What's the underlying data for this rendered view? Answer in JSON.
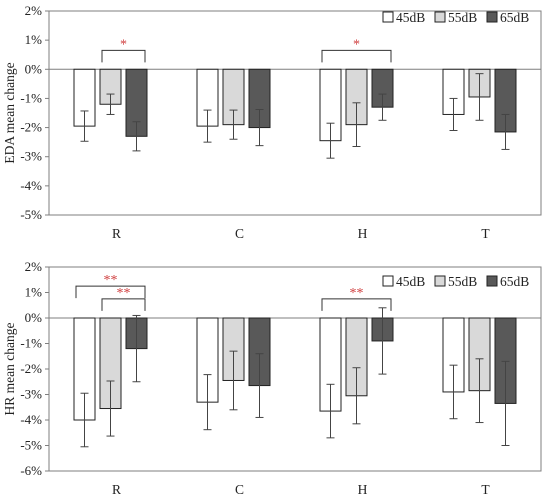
{
  "chart_data": [
    {
      "type": "bar",
      "ylabel": "EDA mean change",
      "ylim": [
        -5,
        2
      ],
      "yticks": [
        2,
        1,
        0,
        -1,
        -2,
        -3,
        -4,
        -5
      ],
      "ytick_labels": [
        "2%",
        "1%",
        "0%",
        "-1%",
        "-2%",
        "-3%",
        "-4%",
        "-5%"
      ],
      "categories": [
        "R",
        "C",
        "H",
        "T"
      ],
      "legend_position": "top-right",
      "series": [
        {
          "name": "45dB",
          "color": "#ffffff",
          "values": [
            -1.95,
            -1.95,
            -2.45,
            -1.55
          ],
          "errors": [
            0.52,
            0.55,
            0.6,
            0.55
          ]
        },
        {
          "name": "55dB",
          "color": "#d9d9d9",
          "values": [
            -1.2,
            -1.9,
            -1.9,
            -0.95
          ],
          "errors": [
            0.35,
            0.5,
            0.75,
            0.8
          ]
        },
        {
          "name": "65dB",
          "color": "#595959",
          "values": [
            -2.3,
            -2.0,
            -1.3,
            -2.15
          ],
          "errors": [
            0.5,
            0.62,
            0.45,
            0.6
          ]
        }
      ],
      "significance": [
        {
          "category": "R",
          "from_series": 1,
          "to_series": 2,
          "label": "*",
          "y": 0.65
        },
        {
          "category": "H",
          "from_series": 0,
          "to_series": 2,
          "label": "*",
          "y": 0.65
        }
      ]
    },
    {
      "type": "bar",
      "ylabel": "HR mean change",
      "ylim": [
        -6,
        2
      ],
      "yticks": [
        2,
        1,
        0,
        -1,
        -2,
        -3,
        -4,
        -5,
        -6
      ],
      "ytick_labels": [
        "2%",
        "1%",
        "0%",
        "-1%",
        "-2%",
        "-3%",
        "-4%",
        "-5%",
        "-6%"
      ],
      "categories": [
        "R",
        "C",
        "H",
        "T"
      ],
      "legend_position": "top-right",
      "series": [
        {
          "name": "45dB",
          "color": "#ffffff",
          "values": [
            -4.0,
            -3.3,
            -3.65,
            -2.9
          ],
          "errors": [
            1.05,
            1.08,
            1.05,
            1.05
          ]
        },
        {
          "name": "55dB",
          "color": "#d9d9d9",
          "values": [
            -3.55,
            -2.45,
            -3.05,
            -2.85
          ],
          "errors": [
            1.08,
            1.15,
            1.1,
            1.25
          ]
        },
        {
          "name": "65dB",
          "color": "#595959",
          "values": [
            -1.2,
            -2.65,
            -0.9,
            -3.35
          ],
          "errors": [
            1.3,
            1.25,
            1.3,
            1.65
          ]
        }
      ],
      "significance": [
        {
          "category": "R",
          "from_series": 0,
          "to_series": 2,
          "label": "**",
          "y": 1.25
        },
        {
          "category": "R",
          "from_series": 1,
          "to_series": 2,
          "label": "**",
          "y": 0.75
        },
        {
          "category": "H",
          "from_series": 0,
          "to_series": 2,
          "label": "**",
          "y": 0.75
        }
      ]
    }
  ]
}
